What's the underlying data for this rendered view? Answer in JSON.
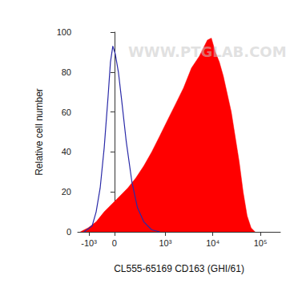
{
  "chart_data": {
    "type": "histogram",
    "x_label": "CL555-65169 CD163 (GHI/61)",
    "y_label": "Relative cell number",
    "annotations": [
      "WWW.PTGLAB.COM"
    ],
    "xlim": [
      -3000,
      262144
    ],
    "xticks": [
      {
        "value": -1000,
        "label": "-10³"
      },
      0,
      {
        "value": 1000,
        "label": "10³"
      },
      {
        "value": 10000,
        "label": "10⁴"
      },
      {
        "value": 100000,
        "label": "10⁵"
      }
    ],
    "ylim": [
      0,
      100
    ],
    "yticks": [
      0,
      20,
      40,
      60,
      80,
      100
    ],
    "grid": false,
    "series": [
      {
        "type": "area",
        "color": "#ff0000",
        "x": [
          -2320,
          -1080,
          -490,
          -200,
          -40,
          47,
          120,
          212,
          335,
          507,
          760,
          1120,
          1650,
          2420,
          3560,
          5230,
          6340,
          7690,
          9320,
          11300,
          13700,
          16600,
          24400,
          35800,
          43300,
          52500,
          63600,
          77000
        ],
        "values": [
          0,
          2,
          5,
          10,
          14,
          18,
          22,
          27,
          33,
          40,
          48,
          56,
          64,
          72,
          82,
          88,
          92,
          96,
          97,
          90,
          85,
          78,
          60,
          35,
          20,
          8,
          2,
          0
        ]
      },
      {
        "type": "line",
        "color": "#2a2aa8",
        "x": [
          -1590,
          -730,
          -490,
          -320,
          -200,
          -112,
          -68,
          -27,
          7,
          33,
          61,
          104,
          163,
          234,
          335,
          507,
          760
        ],
        "values": [
          0,
          3,
          10,
          22,
          42,
          68,
          85,
          93,
          89,
          80,
          66,
          45,
          25,
          12,
          5,
          1,
          0
        ]
      }
    ]
  }
}
